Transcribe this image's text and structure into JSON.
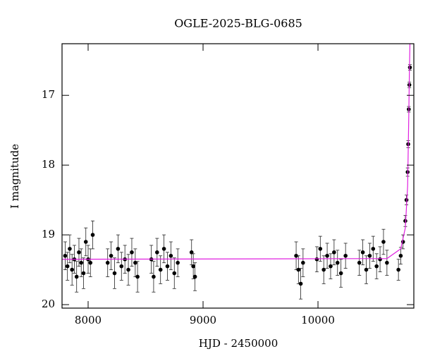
{
  "chart_data": {
    "type": "scatter",
    "title": "OGLE-2025-BLG-0685",
    "x_label": "HJD - 2450000",
    "y_label": "I magnitude",
    "xlim": [
      7773,
      10834
    ],
    "ylim": [
      16.26,
      20.05
    ],
    "y_inverted": true,
    "xticks": [
      8000,
      9000,
      10000
    ],
    "yticks": [
      17,
      18,
      19,
      20
    ],
    "color": "#000000",
    "x": [
      7800,
      7820,
      7840,
      7860,
      7880,
      7900,
      7920,
      7940,
      7960,
      7980,
      8000,
      8020,
      8040,
      8170,
      8200,
      8230,
      8260,
      8290,
      8320,
      8350,
      8380,
      8410,
      8430,
      8550,
      8570,
      8600,
      8630,
      8660,
      8690,
      8720,
      8750,
      8780,
      8900,
      8915,
      8930,
      9810,
      9830,
      9850,
      9870,
      9990,
      10020,
      10050,
      10080,
      10110,
      10140,
      10170,
      10200,
      10240,
      10360,
      10390,
      10420,
      10450,
      10480,
      10510,
      10540,
      10570,
      10600,
      10700,
      10720,
      10740,
      10760,
      10770,
      10780,
      10785,
      10790,
      10795,
      10800
    ],
    "values": [
      19.3,
      19.45,
      19.2,
      19.5,
      19.35,
      19.6,
      19.25,
      19.4,
      19.55,
      19.1,
      19.35,
      19.4,
      19.0,
      19.4,
      19.3,
      19.55,
      19.2,
      19.45,
      19.35,
      19.5,
      19.25,
      19.4,
      19.6,
      19.35,
      19.6,
      19.25,
      19.5,
      19.2,
      19.45,
      19.3,
      19.55,
      19.4,
      19.25,
      19.45,
      19.6,
      19.3,
      19.5,
      19.7,
      19.4,
      19.35,
      19.2,
      19.5,
      19.3,
      19.45,
      19.25,
      19.4,
      19.55,
      19.3,
      19.4,
      19.25,
      19.5,
      19.3,
      19.2,
      19.45,
      19.35,
      19.1,
      19.4,
      19.5,
      19.3,
      19.1,
      18.8,
      18.5,
      18.1,
      17.7,
      17.2,
      16.85,
      16.6
    ],
    "errors": [
      0.2,
      0.2,
      0.2,
      0.22,
      0.2,
      0.22,
      0.2,
      0.2,
      0.22,
      0.2,
      0.2,
      0.2,
      0.2,
      0.2,
      0.2,
      0.22,
      0.2,
      0.2,
      0.2,
      0.22,
      0.2,
      0.2,
      0.22,
      0.2,
      0.22,
      0.2,
      0.2,
      0.2,
      0.2,
      0.2,
      0.22,
      0.2,
      0.18,
      0.18,
      0.2,
      0.2,
      0.2,
      0.22,
      0.2,
      0.18,
      0.18,
      0.2,
      0.18,
      0.18,
      0.18,
      0.18,
      0.2,
      0.18,
      0.18,
      0.18,
      0.2,
      0.18,
      0.18,
      0.18,
      0.18,
      0.18,
      0.18,
      0.15,
      0.12,
      0.1,
      0.08,
      0.07,
      0.06,
      0.05,
      0.04,
      0.04,
      0.04
    ],
    "model": {
      "color": "#e020e0",
      "x": [
        7773,
        10600,
        10720,
        10760,
        10780,
        10790,
        10795,
        10800
      ],
      "values": [
        19.35,
        19.34,
        19.2,
        18.9,
        18.3,
        17.3,
        16.7,
        16.26
      ]
    }
  }
}
